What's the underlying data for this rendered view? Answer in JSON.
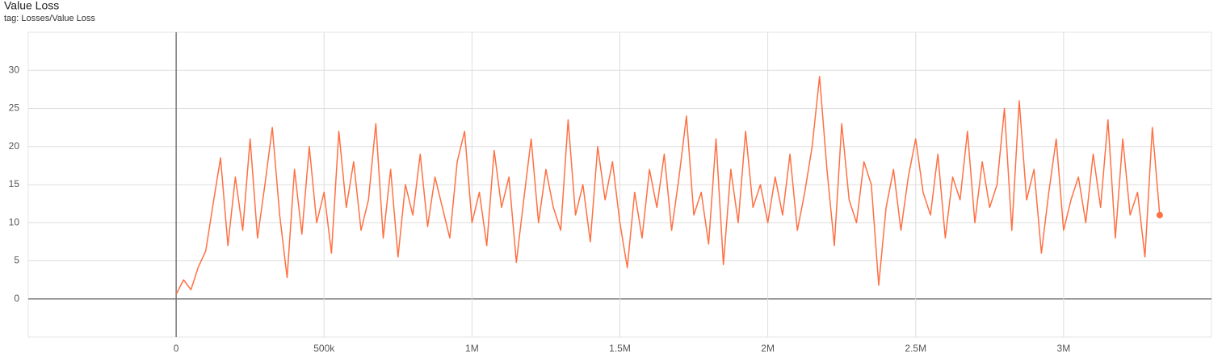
{
  "chart_data": {
    "type": "line",
    "title": "Value Loss",
    "subtitle": "tag: Losses/Value Loss",
    "x": [
      0,
      25000,
      50000,
      75000,
      100000,
      125000,
      150000,
      175000,
      200000,
      225000,
      250000,
      275000,
      300000,
      325000,
      350000,
      375000,
      400000,
      425000,
      450000,
      475000,
      500000,
      525000,
      550000,
      575000,
      600000,
      625000,
      650000,
      675000,
      700000,
      725000,
      750000,
      775000,
      800000,
      825000,
      850000,
      875000,
      900000,
      925000,
      950000,
      975000,
      1000000,
      1025000,
      1050000,
      1075000,
      1100000,
      1125000,
      1150000,
      1175000,
      1200000,
      1225000,
      1250000,
      1275000,
      1300000,
      1325000,
      1350000,
      1375000,
      1400000,
      1425000,
      1450000,
      1475000,
      1500000,
      1525000,
      1550000,
      1575000,
      1600000,
      1625000,
      1650000,
      1675000,
      1700000,
      1725000,
      1750000,
      1775000,
      1800000,
      1825000,
      1850000,
      1875000,
      1900000,
      1925000,
      1950000,
      1975000,
      2000000,
      2025000,
      2050000,
      2075000,
      2100000,
      2125000,
      2150000,
      2175000,
      2200000,
      2225000,
      2250000,
      2275000,
      2300000,
      2325000,
      2350000,
      2375000,
      2400000,
      2425000,
      2450000,
      2475000,
      2500000,
      2525000,
      2550000,
      2575000,
      2600000,
      2625000,
      2650000,
      2675000,
      2700000,
      2725000,
      2750000,
      2775000,
      2800000,
      2825000,
      2850000,
      2875000,
      2900000,
      2925000,
      2950000,
      2975000,
      3000000,
      3025000,
      3050000,
      3075000,
      3100000,
      3125000,
      3150000,
      3175000,
      3200000,
      3225000,
      3250000,
      3275000,
      3300000,
      3325000
    ],
    "series": [
      {
        "name": "Losses/Value Loss",
        "color": "#ff7043",
        "values": [
          0.6,
          2.5,
          1.2,
          4.2,
          6.3,
          12.5,
          18.5,
          7,
          16,
          9,
          21,
          8,
          15,
          22.5,
          11,
          2.8,
          17,
          8.5,
          20,
          10,
          14,
          6,
          22,
          12,
          18,
          9,
          13,
          23,
          8,
          17,
          5.5,
          15,
          11,
          19,
          9.5,
          16,
          12,
          8,
          18,
          22,
          10,
          14,
          7,
          19.5,
          12,
          16,
          4.8,
          13,
          21,
          10,
          17,
          12,
          9,
          23.5,
          11,
          15,
          7.5,
          20,
          13,
          18,
          10,
          4.1,
          14,
          8,
          17,
          12,
          19,
          9,
          16,
          24,
          11,
          14,
          7.2,
          21,
          4.5,
          17,
          10,
          22,
          12,
          15,
          10,
          16,
          11,
          19,
          9,
          14,
          20,
          29.2,
          17,
          7,
          23,
          13,
          10,
          18,
          15,
          1.8,
          12,
          17,
          9,
          16,
          21,
          14,
          11,
          19,
          8,
          16,
          13,
          22,
          10,
          18,
          12,
          15,
          25,
          9,
          26,
          13,
          17,
          6,
          14,
          21,
          9,
          13,
          16,
          10,
          19,
          12,
          23.5,
          8,
          21,
          11,
          14,
          5.5,
          22.5,
          11
        ]
      }
    ],
    "xlim": [
      -500000,
      3500000
    ],
    "xticks": [
      0,
      {
        "value": 500000,
        "label": "500k"
      },
      {
        "value": 1000000,
        "label": "1M"
      },
      {
        "value": 1500000,
        "label": "1.5M"
      },
      {
        "value": 2000000,
        "label": "2M"
      },
      {
        "value": 2500000,
        "label": "2.5M"
      },
      {
        "value": 3000000,
        "label": "3M"
      }
    ],
    "ylim": [
      -5,
      35
    ],
    "yticks": [
      0,
      5,
      10,
      15,
      20,
      25,
      30
    ],
    "grid": true
  }
}
